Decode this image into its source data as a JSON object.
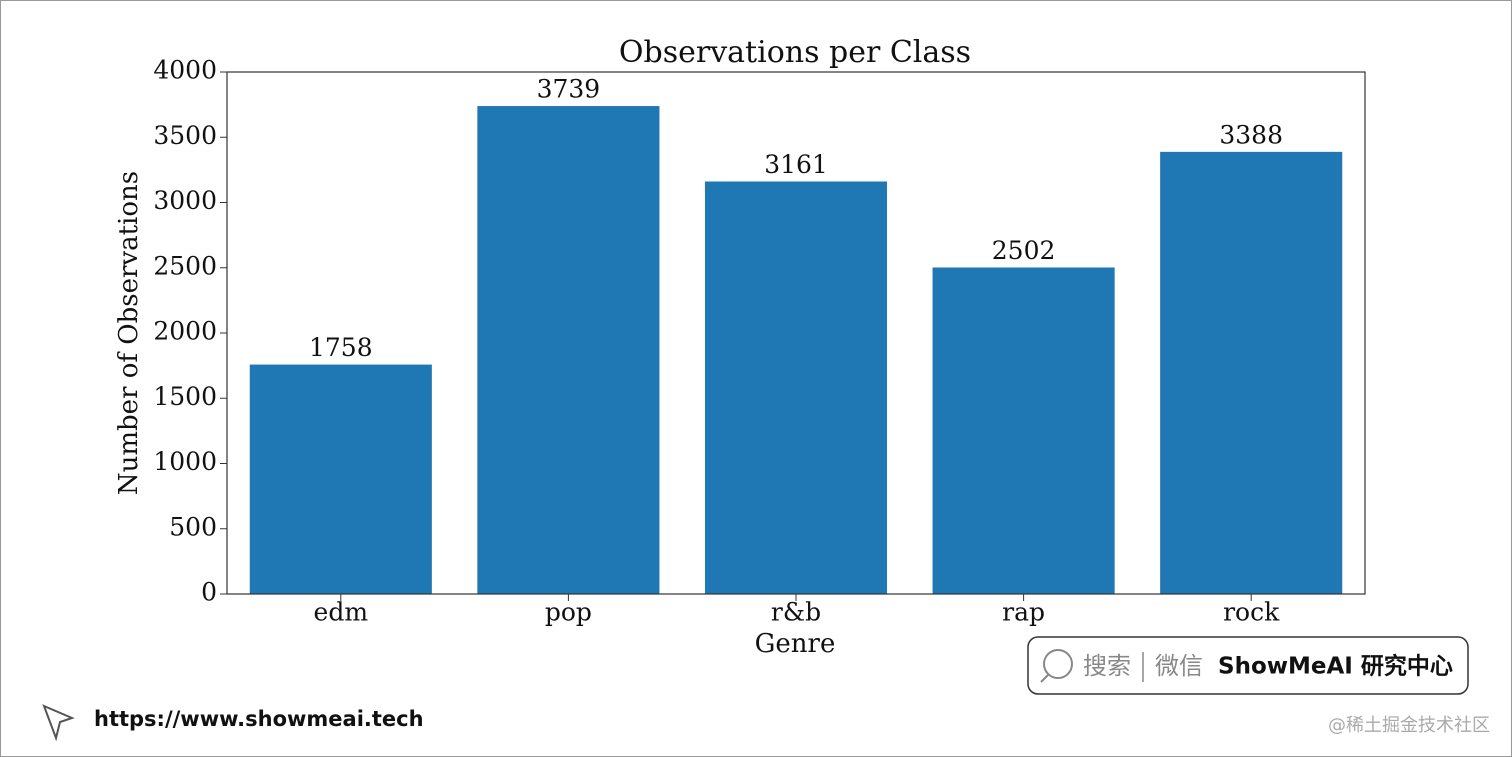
{
  "chart_data": {
    "type": "bar",
    "title": "Observations per Class",
    "x_label": "Genre",
    "y_label": "Number of Observations",
    "categories": [
      "edm",
      "pop",
      "r&b",
      "rap",
      "rock"
    ],
    "values": [
      1758,
      3739,
      3161,
      2502,
      3388
    ],
    "color": "#1f77b4",
    "ylim": [
      0,
      4000
    ],
    "yticks": [
      0,
      500,
      1000,
      1500,
      2000,
      2500,
      3000,
      3500,
      4000
    ],
    "grid": false
  },
  "watermark": {
    "search": "搜索",
    "wechat": "微信",
    "brand": "ShowMeAI 研究中心"
  },
  "footer": {
    "url": "https://www.showmeai.tech",
    "credit": "@稀土掘金技术社区"
  }
}
